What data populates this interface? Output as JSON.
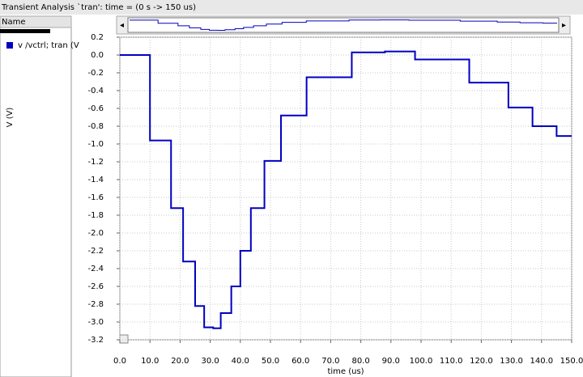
{
  "window_title": "Transient Analysis `tran': time = (0 s -> 150 us)",
  "panel_header": "Name",
  "chart_data": {
    "type": "line",
    "step": "post",
    "xlabel": "time (us)",
    "ylabel": "V (V)",
    "x": [
      0,
      10,
      17,
      21,
      25,
      28,
      31,
      33.5,
      37,
      40,
      43.5,
      48,
      53.5,
      62,
      77,
      88,
      98,
      116,
      129,
      137,
      145,
      150
    ],
    "series": [
      {
        "name": "v /vctrl; tran (V",
        "color": "#0000c0",
        "values": [
          0,
          -0.96,
          -1.72,
          -2.32,
          -2.82,
          -3.06,
          -3.07,
          -2.9,
          -2.6,
          -2.2,
          -1.72,
          -1.19,
          -0.68,
          -0.25,
          0.03,
          0.04,
          -0.05,
          -0.31,
          -0.59,
          -0.8,
          -0.91,
          -0.91
        ]
      }
    ],
    "xlim": [
      0,
      150
    ],
    "xticks": [
      {
        "value": 0,
        "label": "0.0"
      },
      {
        "value": 10,
        "label": "10.0"
      },
      {
        "value": 20,
        "label": "20.0"
      },
      {
        "value": 30,
        "label": "30.0"
      },
      {
        "value": 40,
        "label": "40.0"
      },
      {
        "value": 50,
        "label": "50.0"
      },
      {
        "value": 60,
        "label": "60.0"
      },
      {
        "value": 70,
        "label": "70.0"
      },
      {
        "value": 80,
        "label": "80.0"
      },
      {
        "value": 90,
        "label": "90.0"
      },
      {
        "value": 100,
        "label": "100.0"
      },
      {
        "value": 110,
        "label": "110.0"
      },
      {
        "value": 120,
        "label": "120.0"
      },
      {
        "value": 130,
        "label": "130.0"
      },
      {
        "value": 140,
        "label": "140.0"
      },
      {
        "value": 150,
        "label": "150.0"
      }
    ],
    "ylim": [
      -3.2,
      0.2
    ],
    "yticks": [
      0.2,
      {
        "value": 0,
        "label": "0.0"
      },
      -0.2,
      -0.4,
      -0.6,
      -0.8,
      {
        "value": -1,
        "label": "-1.0"
      },
      -1.2,
      -1.4,
      -1.6,
      -1.8,
      {
        "value": -2,
        "label": "-2.0"
      },
      -2.2,
      -2.4,
      -2.6,
      -2.8,
      {
        "value": -3,
        "label": "-3.0"
      },
      -3.2
    ],
    "grid": true
  }
}
